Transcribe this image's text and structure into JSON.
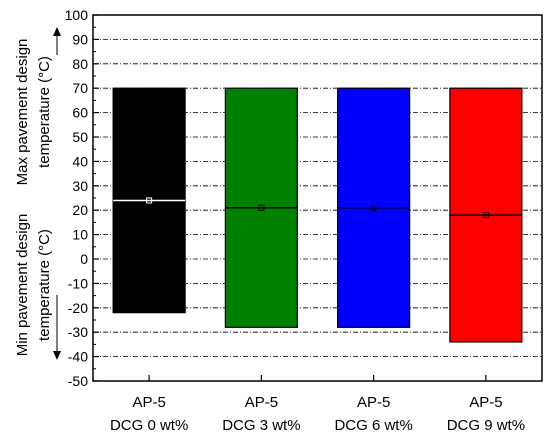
{
  "chart_data": {
    "type": "floating-bar",
    "categories": [
      {
        "line1": "AP-5",
        "line2": "DCG 0 wt%"
      },
      {
        "line1": "AP-5",
        "line2": "DCG 3 wt%"
      },
      {
        "line1": "AP-5",
        "line2": "DCG 6 wt%"
      },
      {
        "line1": "AP-5",
        "line2": "DCG 9 wt%"
      }
    ],
    "series": [
      {
        "low": -22,
        "high": 70,
        "mid": 24,
        "color": "#000000",
        "mid_color": "#ffffff"
      },
      {
        "low": -28,
        "high": 70,
        "mid": 21,
        "color": "#008000",
        "mid_color": "#000000"
      },
      {
        "low": -28,
        "high": 70,
        "mid": 21,
        "color": "#0000ff",
        "mid_color": "#000000"
      },
      {
        "low": -34,
        "high": 70,
        "mid": 18,
        "color": "#ff0000",
        "mid_color": "#000000"
      }
    ],
    "ylim": [
      -50,
      100
    ],
    "yticks": [
      -50,
      -40,
      -30,
      -20,
      -10,
      0,
      10,
      20,
      30,
      40,
      50,
      60,
      70,
      80,
      90,
      100
    ],
    "ylabel_upper": [
      "Max pavement design",
      "temperature (°C)"
    ],
    "ylabel_lower": [
      "Min pavement design",
      "temperature (°C)"
    ],
    "grid": "horizontal dash-dot"
  }
}
